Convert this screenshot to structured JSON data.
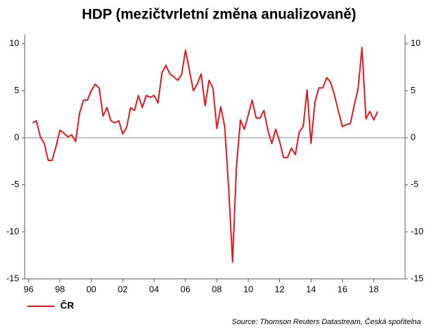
{
  "chart_data": {
    "type": "line",
    "title": "HDP (mezičtvrletní změna anualizovaně)",
    "source": "Source: Thomson Reuters Datastream, Česká spořitelna",
    "x": [
      1996.25,
      1996.5,
      1996.75,
      1997,
      1997.25,
      1997.5,
      1997.75,
      1998,
      1998.25,
      1998.5,
      1998.75,
      1999,
      1999.25,
      1999.5,
      1999.75,
      2000,
      2000.25,
      2000.5,
      2000.75,
      2001,
      2001.25,
      2001.5,
      2001.75,
      2002,
      2002.25,
      2002.5,
      2002.75,
      2003,
      2003.25,
      2003.5,
      2003.75,
      2004,
      2004.25,
      2004.5,
      2004.75,
      2005,
      2005.25,
      2005.5,
      2005.75,
      2006,
      2006.25,
      2006.5,
      2006.75,
      2007,
      2007.25,
      2007.5,
      2007.75,
      2008,
      2008.25,
      2008.5,
      2008.75,
      2009,
      2009.25,
      2009.5,
      2009.75,
      2010,
      2010.25,
      2010.5,
      2010.75,
      2011,
      2011.25,
      2011.5,
      2011.75,
      2012,
      2012.25,
      2012.5,
      2012.75,
      2013,
      2013.25,
      2013.5,
      2013.75,
      2014,
      2014.25,
      2014.5,
      2014.75,
      2015,
      2015.25,
      2015.5,
      2015.75,
      2016,
      2016.25,
      2016.5,
      2016.75,
      2017,
      2017.25,
      2017.5,
      2017.75,
      2018,
      2018.25
    ],
    "series": [
      {
        "name": "ČR",
        "color": "#e8141b",
        "values": [
          1.6,
          1.8,
          0.1,
          -0.6,
          -2.4,
          -2.4,
          -0.9,
          0.8,
          0.5,
          0.1,
          0.3,
          -0.4,
          2.6,
          4.0,
          4.0,
          5.0,
          5.7,
          5.3,
          2.3,
          3.2,
          1.8,
          1.6,
          1.8,
          0.4,
          1.1,
          3.2,
          2.9,
          4.5,
          3.2,
          4.5,
          4.3,
          4.5,
          3.7,
          6.9,
          7.7,
          6.8,
          6.5,
          6.1,
          6.7,
          9.3,
          7.2,
          5.0,
          5.7,
          6.8,
          3.4,
          6.1,
          5.3,
          1.0,
          3.3,
          1.2,
          -5.3,
          -13.2,
          -3.0,
          1.9,
          0.9,
          2.4,
          4.0,
          2.1,
          2.1,
          2.9,
          0.8,
          -0.6,
          0.9,
          -0.4,
          -2.1,
          -2.1,
          -1.1,
          -1.8,
          0.6,
          1.2,
          5.1,
          -0.6,
          3.8,
          5.3,
          5.3,
          6.4,
          5.9,
          4.5,
          2.8,
          1.2,
          1.4,
          1.5,
          3.4,
          5.2,
          9.6,
          2.0,
          2.8,
          1.9,
          2.8
        ]
      }
    ],
    "xlim": [
      1995.75,
      2020
    ],
    "xticks": [
      {
        "value": 1996,
        "label": "96"
      },
      {
        "value": 1998,
        "label": "98"
      },
      {
        "value": 2000,
        "label": "00"
      },
      {
        "value": 2002,
        "label": "02"
      },
      {
        "value": 2004,
        "label": "04"
      },
      {
        "value": 2006,
        "label": "06"
      },
      {
        "value": 2008,
        "label": "08"
      },
      {
        "value": 2010,
        "label": "10"
      },
      {
        "value": 2012,
        "label": "12"
      },
      {
        "value": 2014,
        "label": "14"
      },
      {
        "value": 2016,
        "label": "16"
      },
      {
        "value": 2018,
        "label": "18"
      }
    ],
    "ylim": [
      -15,
      11
    ],
    "yticks": [
      -15,
      -10,
      -5,
      0,
      5,
      10
    ],
    "y2lim": [
      -15,
      11
    ],
    "y2ticks": [
      -15,
      -10,
      -5,
      0,
      5,
      10
    ],
    "legend": "bottom-left"
  }
}
